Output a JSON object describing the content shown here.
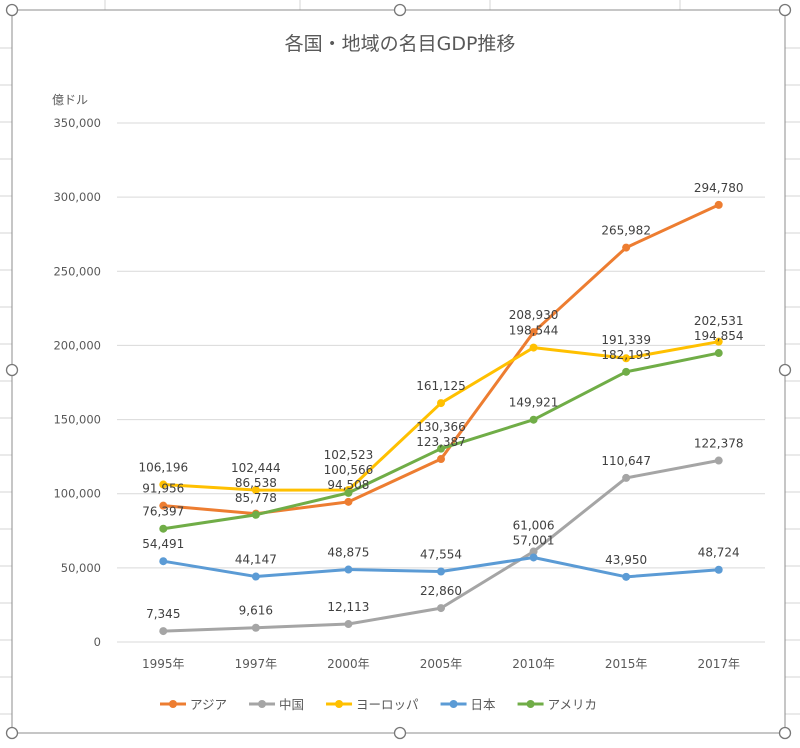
{
  "chart_data": {
    "type": "line",
    "title": "各国・地域の名目GDP推移",
    "ylabel": "億ドル",
    "ylim": [
      0,
      350000
    ],
    "yticks": [
      0,
      50000,
      100000,
      150000,
      200000,
      250000,
      300000,
      350000
    ],
    "ytick_labels": [
      "0",
      "50,000",
      "100,000",
      "150,000",
      "200,000",
      "250,000",
      "300,000",
      "350,000"
    ],
    "categories": [
      "1995年",
      "1997年",
      "2000年",
      "2005年",
      "2010年",
      "2015年",
      "2017年"
    ],
    "grid": true,
    "legend_position": "bottom",
    "series": [
      {
        "name": "アジア",
        "color": "#ED7D31",
        "values": [
          91956,
          86538,
          94508,
          123387,
          208930,
          265982,
          294780
        ],
        "labels": [
          "91,956",
          "86,538",
          "94,508",
          "123,387",
          "208,930",
          "265,982",
          "294,780"
        ]
      },
      {
        "name": "中国",
        "color": "#A5A5A5",
        "values": [
          7345,
          9616,
          12113,
          22860,
          61006,
          110647,
          122378
        ],
        "labels": [
          "7,345",
          "9,616",
          "12,113",
          "22,860",
          "61,006",
          "110,647",
          "122,378"
        ]
      },
      {
        "name": "ヨーロッパ",
        "color": "#FFC000",
        "values": [
          106196,
          102444,
          102523,
          161125,
          198544,
          191339,
          202531
        ],
        "labels": [
          "106,196",
          "102,444",
          "102,523",
          "161,125",
          "198,544",
          "191,339",
          "202,531"
        ]
      },
      {
        "name": "日本",
        "color": "#5B9BD5",
        "values": [
          54491,
          44147,
          48875,
          47554,
          57001,
          43950,
          48724
        ],
        "labels": [
          "54,491",
          "44,147",
          "48,875",
          "47,554",
          "57,001",
          "43,950",
          "48,724"
        ]
      },
      {
        "name": "アメリカ",
        "color": "#70AD47",
        "values": [
          76397,
          85778,
          100566,
          130366,
          149921,
          182193,
          194854
        ],
        "labels": [
          "76,397",
          "85,778",
          "100,566",
          "130,366",
          "149,921",
          "182,193",
          "194,854"
        ]
      }
    ]
  }
}
